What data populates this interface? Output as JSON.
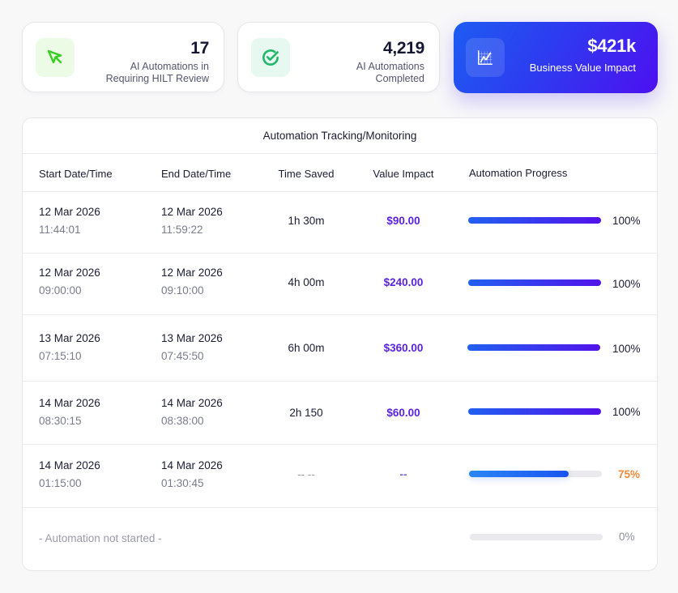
{
  "stats": [
    {
      "icon": "cursor-icon",
      "value": "17",
      "label_line1": "AI Automations in",
      "label_line2": "Requiring HILT Review",
      "accent": "#35d01f"
    },
    {
      "icon": "check-circle-icon",
      "value": "4,219",
      "label_line1": "AI Automations",
      "label_line2": "Completed",
      "accent": "#22b86a"
    },
    {
      "icon": "line-chart-icon",
      "value": "$421k",
      "label_line1": "Business Value Impact",
      "label_line2": "",
      "accent": "#ffffff"
    }
  ],
  "panel": {
    "title": "Automation Tracking/Monitoring",
    "columns": [
      "Start Date/Time",
      "End Date/Time",
      "Time Saved",
      "Value Impact",
      "Automation Progress"
    ],
    "rows": [
      {
        "start_date": "12 Mar 2026",
        "start_time": "11:44:01",
        "end_date": "12 Mar 2026",
        "end_time": "11:59:22",
        "time_saved": "1h 30m",
        "value": "$90.00",
        "progress": 100,
        "progress_label": "100%"
      },
      {
        "start_date": "12 Mar 2026",
        "start_time": "09:00:00",
        "end_date": "12 Mar 2026",
        "end_time": "09:10:00",
        "time_saved": "4h 00m",
        "value": "$240.00",
        "progress": 100,
        "progress_label": "100%"
      },
      {
        "start_date": "13 Mar 2026",
        "start_time": "07:15:10",
        "end_date": "13 Mar 2026",
        "end_time": "07:45:50",
        "time_saved": "6h 00m",
        "value": "$360.00",
        "progress": 100,
        "progress_label": "100%"
      },
      {
        "start_date": "14 Mar 2026",
        "start_time": "08:30:15",
        "end_date": "14 Mar 2026",
        "end_time": "08:38:00",
        "time_saved": "2h 150",
        "value": "$60.00",
        "progress": 100,
        "progress_label": "100%"
      },
      {
        "start_date": "14 Mar 2026",
        "start_time": "01:15:00",
        "end_date": "14 Mar 2026",
        "end_time": "01:30:45",
        "time_saved": "-- --",
        "value": "--",
        "progress": 75,
        "progress_label": "75%"
      },
      {
        "not_started_label": "- Automation not started -",
        "progress": 0,
        "progress_label": "0%"
      }
    ]
  },
  "colors": {
    "brand_gradient_start": "#1e5cf2",
    "brand_gradient_end": "#4d10f0",
    "value_purple": "#5a22e0",
    "warning_orange": "#f0883a"
  }
}
